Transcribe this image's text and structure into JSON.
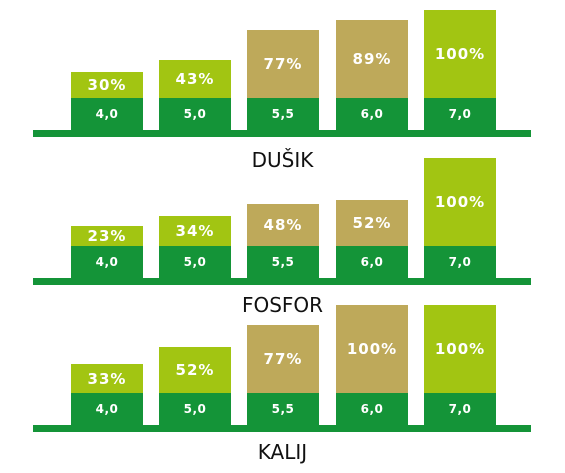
{
  "colors": {
    "green": "#149438",
    "lime": "#a2c512",
    "tan": "#bea95a",
    "text": "#ffffff",
    "label": "#111111"
  },
  "chart_data": [
    {
      "type": "bar",
      "title": "DUŠIK",
      "categories": [
        "4,0",
        "5,0",
        "5,5",
        "6,0",
        "7,0"
      ],
      "values": [
        30,
        43,
        77,
        89,
        100
      ],
      "value_labels": [
        "30%",
        "43%",
        "77%",
        "89%",
        "100%"
      ],
      "bar_colors": [
        "lime",
        "lime",
        "tan",
        "tan",
        "lime"
      ],
      "ylim": [
        0,
        100
      ],
      "unit": "%"
    },
    {
      "type": "bar",
      "title": "FOSFOR",
      "categories": [
        "4,0",
        "5,0",
        "5,5",
        "6,0",
        "7,0"
      ],
      "values": [
        23,
        34,
        48,
        52,
        100
      ],
      "value_labels": [
        "23%",
        "34%",
        "48%",
        "52%",
        "100%"
      ],
      "bar_colors": [
        "lime",
        "lime",
        "tan",
        "tan",
        "lime"
      ],
      "ylim": [
        0,
        100
      ],
      "unit": "%"
    },
    {
      "type": "bar",
      "title": "KALIJ",
      "categories": [
        "4,0",
        "5,0",
        "5,5",
        "6,0",
        "7,0"
      ],
      "values": [
        33,
        52,
        77,
        100,
        100
      ],
      "value_labels": [
        "33%",
        "52%",
        "77%",
        "100%",
        "100%"
      ],
      "bar_colors": [
        "lime",
        "lime",
        "tan",
        "tan",
        "lime"
      ],
      "ylim": [
        0,
        100
      ],
      "unit": "%"
    }
  ]
}
